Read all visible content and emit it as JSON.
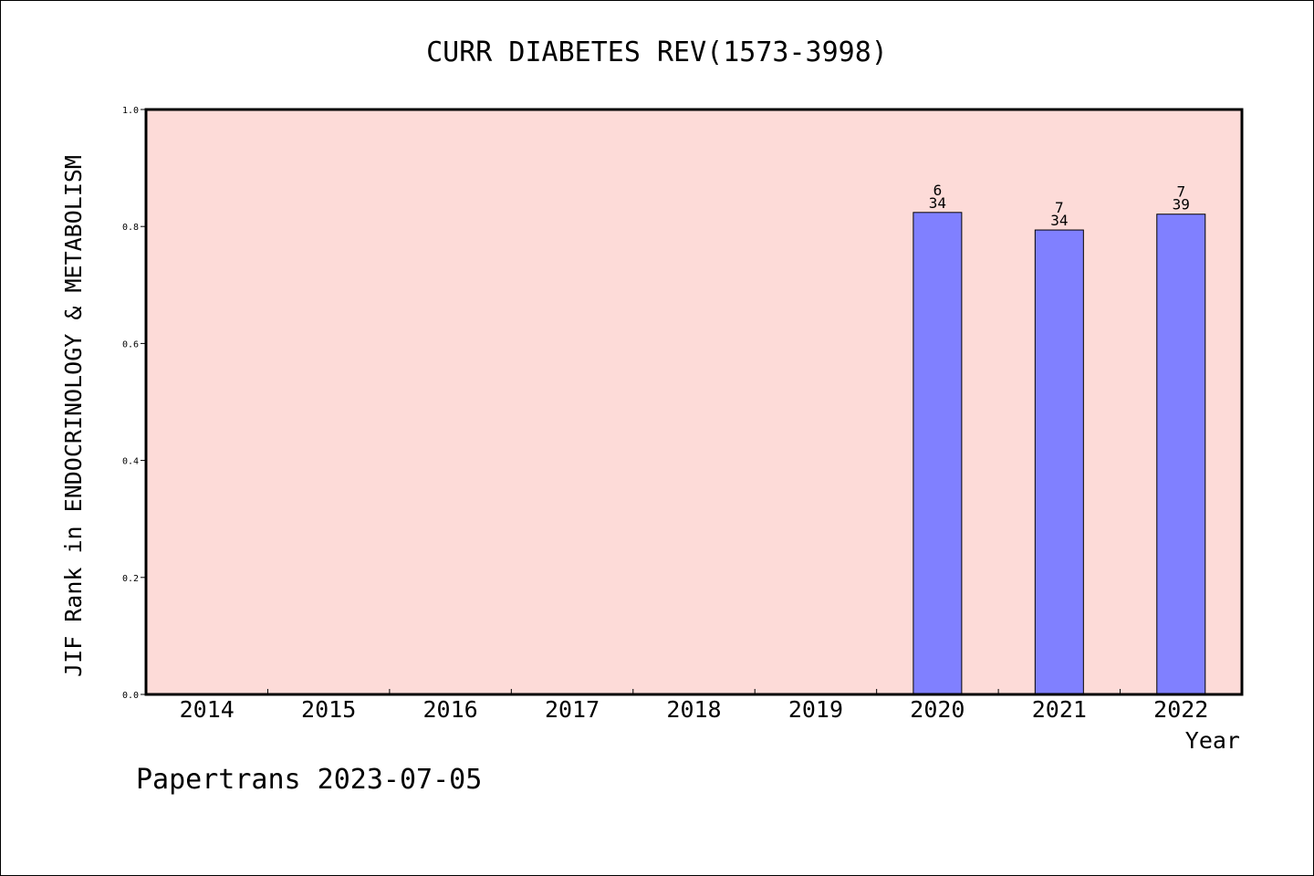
{
  "chart_data": {
    "type": "bar",
    "title": "CURR DIABETES REV(1573-3998)",
    "xlabel": "Year",
    "ylabel": "JIF Rank in ENDOCRINOLOGY & METABOLISM",
    "categories": [
      "2014",
      "2015",
      "2016",
      "2017",
      "2018",
      "2019",
      "2020",
      "2021",
      "2022"
    ],
    "values": [
      null,
      null,
      null,
      null,
      null,
      null,
      0.824,
      0.794,
      0.821
    ],
    "bar_labels": [
      null,
      null,
      null,
      null,
      null,
      null,
      {
        "rank": "6",
        "total": "34"
      },
      {
        "rank": "7",
        "total": "34"
      },
      {
        "rank": "7",
        "total": "39"
      }
    ],
    "ylim": [
      0,
      1.0
    ],
    "yticks": [
      "0.0",
      "0.2",
      "0.4",
      "0.6",
      "0.8",
      "1.0"
    ],
    "colors": {
      "plot_background": "#fddbd8",
      "bar_fill": "#8080ff",
      "axis": "#000000"
    },
    "grid": false,
    "legend": "none"
  },
  "footer": {
    "credit": "Papertrans 2023-07-05"
  }
}
